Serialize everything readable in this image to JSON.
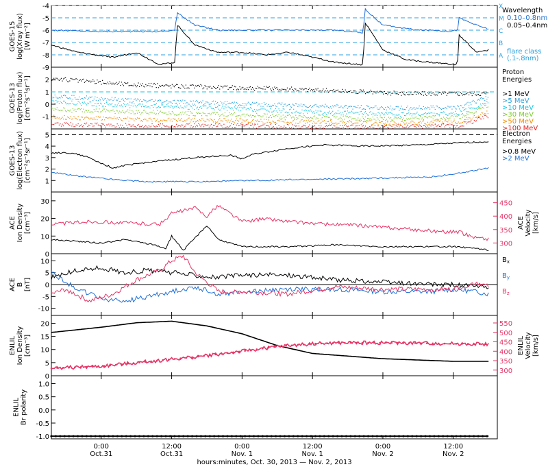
{
  "colors": {
    "axis": "#000000",
    "goes_blue": "#1f6fd6",
    "guide": "#2aa0e0",
    "cyan": "#11c4e0",
    "pink": "#e63466",
    "green": "#7ccd2a",
    "yellow": "#e0d000",
    "orange": "#f28c00",
    "red": "#e02020"
  },
  "xaxis": {
    "title": "hours:minutes, Oct. 30, 2013 — Nov.  2, 2013",
    "ticks": [
      {
        "t": 24,
        "time": "0:00",
        "date": "Oct.31"
      },
      {
        "t": 36,
        "time": "12:00",
        "date": "Oct.31"
      },
      {
        "t": 48,
        "time": "0:00",
        "date": "Nov.  1"
      },
      {
        "t": 60,
        "time": "12:00",
        "date": "Nov.  1"
      },
      {
        "t": 72,
        "time": "0:00",
        "date": "Nov.  2"
      },
      {
        "t": 84,
        "time": "12:00",
        "date": "Nov.  2"
      }
    ],
    "range_hours": [
      15.5,
      91.5
    ]
  },
  "chart_data": [
    {
      "type": "line",
      "name": "xray",
      "ylabel": [
        "GOES-15",
        "log(Xray flux)",
        "[W m⁻²]"
      ],
      "ylim": [
        -9,
        -4
      ],
      "yticks": [
        -9,
        -8,
        -7,
        -6,
        -5,
        -4
      ],
      "flare_class_lines": [
        {
          "y": -4,
          "label": "X"
        },
        {
          "y": -5,
          "label": "M"
        },
        {
          "y": -6,
          "label": "C"
        },
        {
          "y": -7,
          "label": "B"
        },
        {
          "y": -8,
          "label": "A"
        }
      ],
      "legend": {
        "title": "Wavelength",
        "entries": [
          {
            "label": "0.10–0.8nm",
            "color": "#1f6fd6"
          },
          {
            "label": "0.05–0.4nm",
            "color": "#000000"
          }
        ],
        "note": [
          "flare class",
          "(.1-.8nm)"
        ]
      },
      "series": [
        {
          "name": "0.10–0.8nm",
          "color": "#1f6fd6",
          "x": [
            15.5,
            23,
            34,
            36.5,
            37,
            40,
            44,
            47,
            49,
            60,
            64,
            68.6,
            69,
            72,
            78,
            81,
            83,
            84.7,
            85,
            88,
            90
          ],
          "y": [
            -6.0,
            -6.1,
            -6.1,
            -6.0,
            -4.6,
            -5.6,
            -6.0,
            -6.0,
            -6.0,
            -6.0,
            -6.0,
            -6.2,
            -4.3,
            -5.6,
            -6.0,
            -6.0,
            -6.1,
            -6.0,
            -5.0,
            -5.6,
            -5.9
          ]
        },
        {
          "name": "0.05–0.4nm",
          "color": "#000000",
          "x": [
            15.5,
            20,
            26,
            30,
            34,
            36.5,
            37,
            40,
            44,
            48,
            52,
            56,
            60,
            64,
            68.6,
            69,
            72,
            76,
            80,
            84.7,
            85,
            88,
            90
          ],
          "y": [
            -7.2,
            -7.8,
            -8.2,
            -7.8,
            -8.8,
            -8.6,
            -5.6,
            -7.2,
            -7.8,
            -7.8,
            -8.0,
            -7.8,
            -8.2,
            -8.6,
            -8.8,
            -5.4,
            -7.6,
            -8.4,
            -8.6,
            -8.8,
            -6.4,
            -7.8,
            -7.6
          ]
        }
      ]
    },
    {
      "type": "scatter",
      "name": "proton",
      "ylabel": [
        "GOES-13",
        "log(Proton flux)",
        "[cm⁻²s⁻¹sr⁻¹]"
      ],
      "ylim": [
        -2,
        3
      ],
      "yticks": [
        -1,
        0,
        1,
        2
      ],
      "legend": {
        "title": [
          "Proton",
          "Energies"
        ],
        "entries": [
          {
            "label": ">1 MeV",
            "color": "#000000"
          },
          {
            "label": ">5 MeV",
            "color": "#2aa0e0"
          },
          {
            "label": ">10 MeV",
            "color": "#11c4e0"
          },
          {
            "label": ">30 MeV",
            "color": "#7ccd2a"
          },
          {
            "label": ">50 MeV",
            "color": "#f28c00"
          },
          {
            "label": ">100 MeV",
            "color": "#e02020"
          }
        ]
      },
      "reference_line_y": 1,
      "series": [
        {
          "name": ">1 MeV",
          "color": "#000000",
          "x": [
            15.5,
            30,
            45,
            60,
            75,
            90
          ],
          "y": [
            2.1,
            1.6,
            1.4,
            1.2,
            0.9,
            0.9
          ]
        },
        {
          "name": ">5 MeV",
          "color": "#2aa0e0",
          "x": [
            15.5,
            30,
            45,
            60,
            75,
            85,
            90
          ],
          "y": [
            0.7,
            0.3,
            0.1,
            -0.1,
            -0.3,
            -0.2,
            0.6
          ]
        },
        {
          "name": ">10 MeV",
          "color": "#11c4e0",
          "x": [
            15.5,
            30,
            45,
            60,
            75,
            85,
            90
          ],
          "y": [
            0.2,
            -0.1,
            -0.3,
            -0.6,
            -0.8,
            -0.7,
            0.2
          ]
        },
        {
          "name": ">30 MeV",
          "color": "#7ccd2a",
          "x": [
            15.5,
            30,
            45,
            60,
            75,
            85,
            90
          ],
          "y": [
            -0.4,
            -0.6,
            -0.8,
            -1.0,
            -1.2,
            -1.0,
            -0.1
          ]
        },
        {
          "name": ">50 MeV",
          "color": "#f28c00",
          "x": [
            15.5,
            30,
            45,
            60,
            75,
            85,
            90
          ],
          "y": [
            -1.0,
            -1.2,
            -1.3,
            -1.4,
            -1.5,
            -1.4,
            -0.6
          ]
        },
        {
          "name": ">100 MeV",
          "color": "#e02020",
          "x": [
            15.5,
            30,
            45,
            60,
            75,
            85,
            90
          ],
          "y": [
            -1.6,
            -1.7,
            -1.7,
            -1.8,
            -1.8,
            -1.7,
            -0.9
          ]
        }
      ]
    },
    {
      "type": "line",
      "name": "electron",
      "ylabel": [
        "GOES-13",
        "log(Electron flux)",
        "[cm⁻²s⁻¹sr⁻¹]"
      ],
      "ylim": [
        0,
        5.5
      ],
      "yticks": [
        1,
        2,
        3,
        4,
        5
      ],
      "reference_line_y": 5,
      "legend": {
        "title": [
          "Electron",
          "Energies"
        ],
        "entries": [
          {
            "label": ">0.8 MeV",
            "color": "#000000"
          },
          {
            "label": ">2 MeV",
            "color": "#1f6fd6"
          }
        ]
      },
      "series": [
        {
          "name": ">0.8 MeV",
          "color": "#000000",
          "x": [
            15.5,
            19,
            22,
            24,
            26,
            28,
            32,
            40,
            46,
            48,
            50,
            56,
            62,
            70,
            78,
            86,
            90
          ],
          "y": [
            3.4,
            3.4,
            3.0,
            2.5,
            2.1,
            2.3,
            2.6,
            3.0,
            3.2,
            2.9,
            3.3,
            3.8,
            4.1,
            4.0,
            4.1,
            4.3,
            4.4
          ]
        },
        {
          "name": ">2 MeV",
          "color": "#1f6fd6",
          "x": [
            15.5,
            20,
            26,
            32,
            40,
            50,
            60,
            70,
            80,
            86,
            90
          ],
          "y": [
            1.7,
            1.4,
            1.1,
            0.9,
            0.9,
            1.0,
            1.1,
            1.2,
            1.3,
            1.7,
            2.1
          ]
        }
      ]
    },
    {
      "type": "line",
      "name": "ace_plasma",
      "ylabel": [
        "ACE",
        "Ion Density",
        "[cm⁻³]"
      ],
      "ylabel_right": [
        "ACE",
        "Velocity",
        "[km/s]"
      ],
      "ylim": [
        0,
        35
      ],
      "yticks": [
        0,
        10,
        20,
        30
      ],
      "ylim_right": [
        260,
        490
      ],
      "yticks_right": [
        300,
        350,
        400,
        450
      ],
      "series": [
        {
          "name": "Density",
          "color": "#000000",
          "axis": "left",
          "x": [
            15.5,
            20,
            24,
            28,
            33,
            35,
            36,
            38,
            42,
            44,
            48,
            56,
            64,
            72,
            80,
            84,
            88,
            90
          ],
          "y": [
            8,
            7,
            6,
            8,
            5,
            3,
            10,
            2,
            16,
            8,
            4,
            4,
            5,
            4,
            4,
            4,
            3,
            2
          ]
        },
        {
          "name": "Velocity",
          "color": "#e63466",
          "axis": "right",
          "x": [
            15.5,
            22,
            28,
            34,
            36,
            40,
            42,
            44,
            48,
            52,
            56,
            62,
            68,
            74,
            80,
            85,
            88,
            90
          ],
          "y": [
            370,
            380,
            375,
            370,
            410,
            430,
            400,
            440,
            380,
            390,
            380,
            370,
            365,
            355,
            345,
            340,
            320,
            315
          ]
        }
      ]
    },
    {
      "type": "line",
      "name": "ace_mag",
      "ylabel": [
        "ACE",
        "B",
        "[nT]"
      ],
      "ylim": [
        -13,
        13
      ],
      "yticks": [
        -10,
        -5,
        0,
        5,
        10
      ],
      "legend": {
        "entries": [
          {
            "label": "Bx",
            "color": "#000000"
          },
          {
            "label": "By",
            "color": "#1f6fd6"
          },
          {
            "label": "Bz",
            "color": "#e63466"
          }
        ]
      },
      "series": [
        {
          "name": "Bx",
          "color": "#000000",
          "x": [
            15.5,
            20,
            24,
            28,
            32,
            36,
            40,
            44,
            48,
            56,
            64,
            72,
            80,
            84,
            88,
            90
          ],
          "y": [
            3,
            6,
            7,
            5,
            6,
            5,
            4,
            3,
            4,
            4,
            2,
            1,
            0,
            0,
            -1,
            -1
          ]
        },
        {
          "name": "By",
          "color": "#1f6fd6",
          "x": [
            15.5,
            20,
            24,
            28,
            32,
            36,
            40,
            44,
            48,
            56,
            64,
            72,
            80,
            84,
            88,
            90
          ],
          "y": [
            5,
            -2,
            -6,
            -7,
            -5,
            -3,
            -1,
            -4,
            -3,
            -2,
            -2,
            -3,
            -3,
            -2,
            -3,
            -4
          ]
        },
        {
          "name": "Bz",
          "color": "#e63466",
          "x": [
            15.5,
            18,
            22,
            26,
            30,
            34,
            36,
            38,
            40,
            44,
            48,
            56,
            64,
            72,
            80,
            84,
            88,
            90
          ],
          "y": [
            -4,
            -2,
            -7,
            -4,
            2,
            6,
            10,
            12,
            5,
            -3,
            -3,
            -4,
            -1,
            -2,
            -2,
            -2,
            1,
            -1
          ]
        }
      ]
    },
    {
      "type": "line",
      "name": "enlil_plasma",
      "ylabel": [
        "ENLIL",
        "Ion Density",
        "[cm⁻³]"
      ],
      "ylabel_right": [
        "ENLIL",
        "Velocity",
        "[km/s]"
      ],
      "ylim": [
        0,
        23
      ],
      "yticks": [
        0,
        5,
        10,
        15,
        20
      ],
      "ylim_right": [
        270,
        590
      ],
      "yticks_right": [
        300,
        350,
        400,
        450,
        500,
        550
      ],
      "series": [
        {
          "name": "Density",
          "color": "#000000",
          "axis": "left",
          "x": [
            15.5,
            24,
            30,
            36,
            42,
            48,
            54,
            60,
            66,
            72,
            78,
            84,
            90
          ],
          "y": [
            16.5,
            18.5,
            20.2,
            20.8,
            19.0,
            16.0,
            11.5,
            8.5,
            7.5,
            6.5,
            6.0,
            5.5,
            5.5
          ]
        },
        {
          "name": "Velocity",
          "color": "#e63466",
          "axis": "right",
          "x": [
            15.5,
            24,
            32,
            40,
            48,
            54,
            60,
            66,
            72,
            78,
            84,
            90
          ],
          "y": [
            310,
            320,
            345,
            370,
            400,
            425,
            440,
            445,
            445,
            443,
            440,
            438
          ]
        }
      ]
    },
    {
      "type": "line",
      "name": "enlil_polarity",
      "ylabel": [
        "ENLIL",
        "Br polarity"
      ],
      "ylim": [
        -1.1,
        1.3
      ],
      "yticks": [
        -1.0,
        -0.5,
        0.0,
        0.5,
        1.0
      ],
      "series": [
        {
          "name": "Br polarity",
          "color": "#000000",
          "x": [
            15.5,
            90
          ],
          "y": [
            -1.0,
            -1.0
          ]
        }
      ]
    }
  ]
}
